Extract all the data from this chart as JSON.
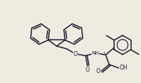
{
  "bg_color": "#f0ebe0",
  "bond_color": "#1a1a2e",
  "bond_width": 1.1,
  "figsize": [
    1.99,
    1.17
  ],
  "dpi": 100
}
